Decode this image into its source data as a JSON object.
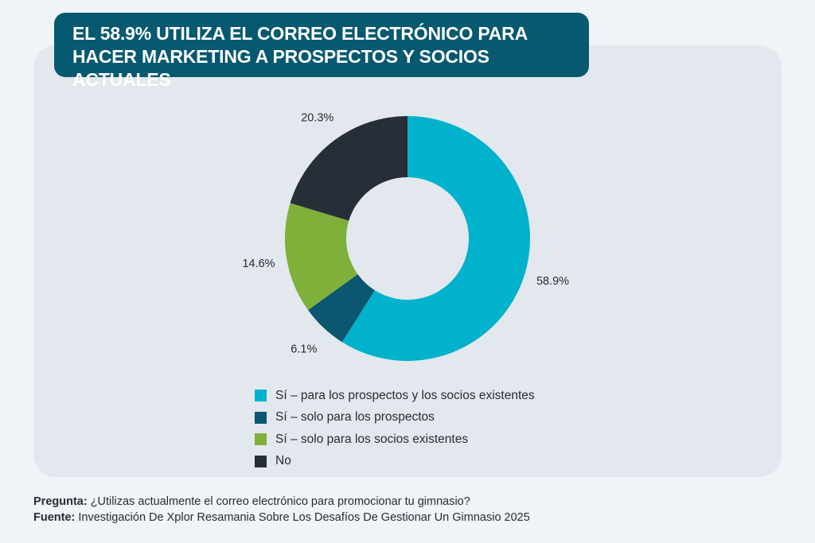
{
  "title": "EL 58.9% UTILIZA EL CORREO ELECTRÓNICO PARA HACER MARKETING A PROSPECTOS Y SOCIOS ACTUALES",
  "chart_data": {
    "type": "pie",
    "donut": true,
    "categories": [
      "Sí – para los prospectos y los socios existentes",
      "Sí – solo para los prospectos",
      "Sí – solo para los socios existentes",
      "No"
    ],
    "values": [
      58.9,
      6.1,
      14.6,
      20.3
    ],
    "data_labels": [
      "58.9%",
      "6.1%",
      "14.6%",
      "20.3%"
    ],
    "colors": [
      "#00b2cc",
      "#0b5670",
      "#7fb03a",
      "#272e37"
    ],
    "legend_position": "bottom"
  },
  "footer": {
    "question_label": "Pregunta:",
    "question": "¿Utilizas actualmente el correo electrónico para promocionar tu gimnasio?",
    "source_label": "Fuente:",
    "source": "Investigación De Xplor Resamania Sobre Los Desafíos De Gestionar Un Gimnasio 2025"
  }
}
